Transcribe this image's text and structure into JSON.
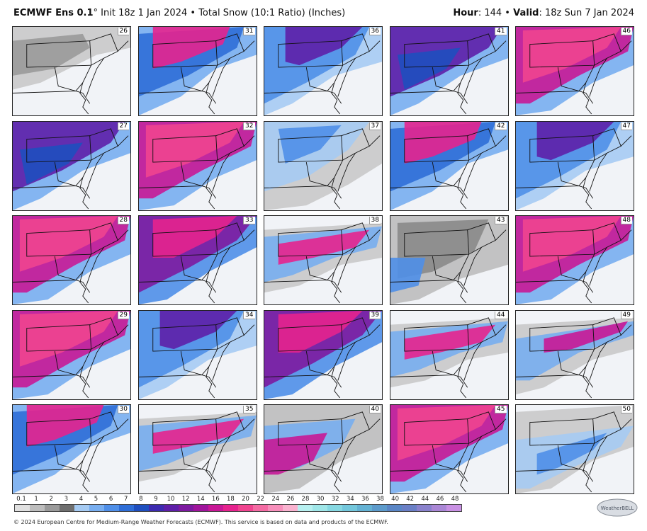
{
  "header": {
    "model": "ECMWF Ens 0.1",
    "degree": "°",
    "init": "Init 18z 1 Jan 2024",
    "bullet": "•",
    "product": "Total Snow (10:1 Ratio) (Inches)",
    "hour_label": "Hour",
    "hour_value": ": 144",
    "valid_label": "Valid",
    "valid_value": ": 18z Sun 7 Jan 2024"
  },
  "panels": [
    {
      "member": "26",
      "style": "gray-light"
    },
    {
      "member": "31",
      "style": "blue-pink"
    },
    {
      "member": "36",
      "style": "blue-purple"
    },
    {
      "member": "41",
      "style": "purple-blue"
    },
    {
      "member": "46",
      "style": "pink-heavy"
    },
    {
      "member": "27",
      "style": "purple-blue"
    },
    {
      "member": "32",
      "style": "pink-heavy"
    },
    {
      "member": "37",
      "style": "blue-light"
    },
    {
      "member": "42",
      "style": "blue-pink"
    },
    {
      "member": "47",
      "style": "blue-purple"
    },
    {
      "member": "28",
      "style": "pink-heavy"
    },
    {
      "member": "33",
      "style": "pink-purple"
    },
    {
      "member": "38",
      "style": "band-pink"
    },
    {
      "member": "43",
      "style": "gray-heavy"
    },
    {
      "member": "48",
      "style": "pink-heavy"
    },
    {
      "member": "29",
      "style": "pink-heavy"
    },
    {
      "member": "34",
      "style": "blue-purple"
    },
    {
      "member": "39",
      "style": "pink-purple"
    },
    {
      "member": "44",
      "style": "band-pink"
    },
    {
      "member": "49",
      "style": "band-thin"
    },
    {
      "member": "30",
      "style": "blue-pink"
    },
    {
      "member": "35",
      "style": "band-pink"
    },
    {
      "member": "40",
      "style": "gray-pink"
    },
    {
      "member": "45",
      "style": "pink-heavy"
    },
    {
      "member": "50",
      "style": "gray-blue"
    }
  ],
  "legend": {
    "ticks": [
      "0.1",
      "1",
      "2",
      "3",
      "4",
      "5",
      "6",
      "7",
      "8",
      "9",
      "10",
      "12",
      "14",
      "16",
      "18",
      "20",
      "22",
      "24",
      "26",
      "28",
      "30",
      "32",
      "34",
      "36",
      "38",
      "40",
      "42",
      "44",
      "46",
      "48"
    ],
    "colors": [
      "#e0e0e0",
      "#bdbdbd",
      "#9a9a9a",
      "#6f6f6f",
      "#a6cbf3",
      "#78aef0",
      "#4f8fe8",
      "#2f6ed7",
      "#1f4fbf",
      "#3d2bb0",
      "#5e1fa8",
      "#7d1aa0",
      "#a0159c",
      "#c81896",
      "#e6238e",
      "#f0448f",
      "#f46ba3",
      "#f78fbb",
      "#f9b2cf",
      "#b7f0f0",
      "#9fe6e8",
      "#86d8e2",
      "#73c7dc",
      "#64b2d4",
      "#5d9bcc",
      "#5a86c6",
      "#6a7fc6",
      "#8a82cd",
      "#aa87d6",
      "#c991e4"
    ]
  },
  "footer": "© 2024 European Centre for Medium-Range Weather Forecasts (ECMWF). This service is based on data and products of the ECMWF.",
  "logo_text": "WeatherBELL"
}
